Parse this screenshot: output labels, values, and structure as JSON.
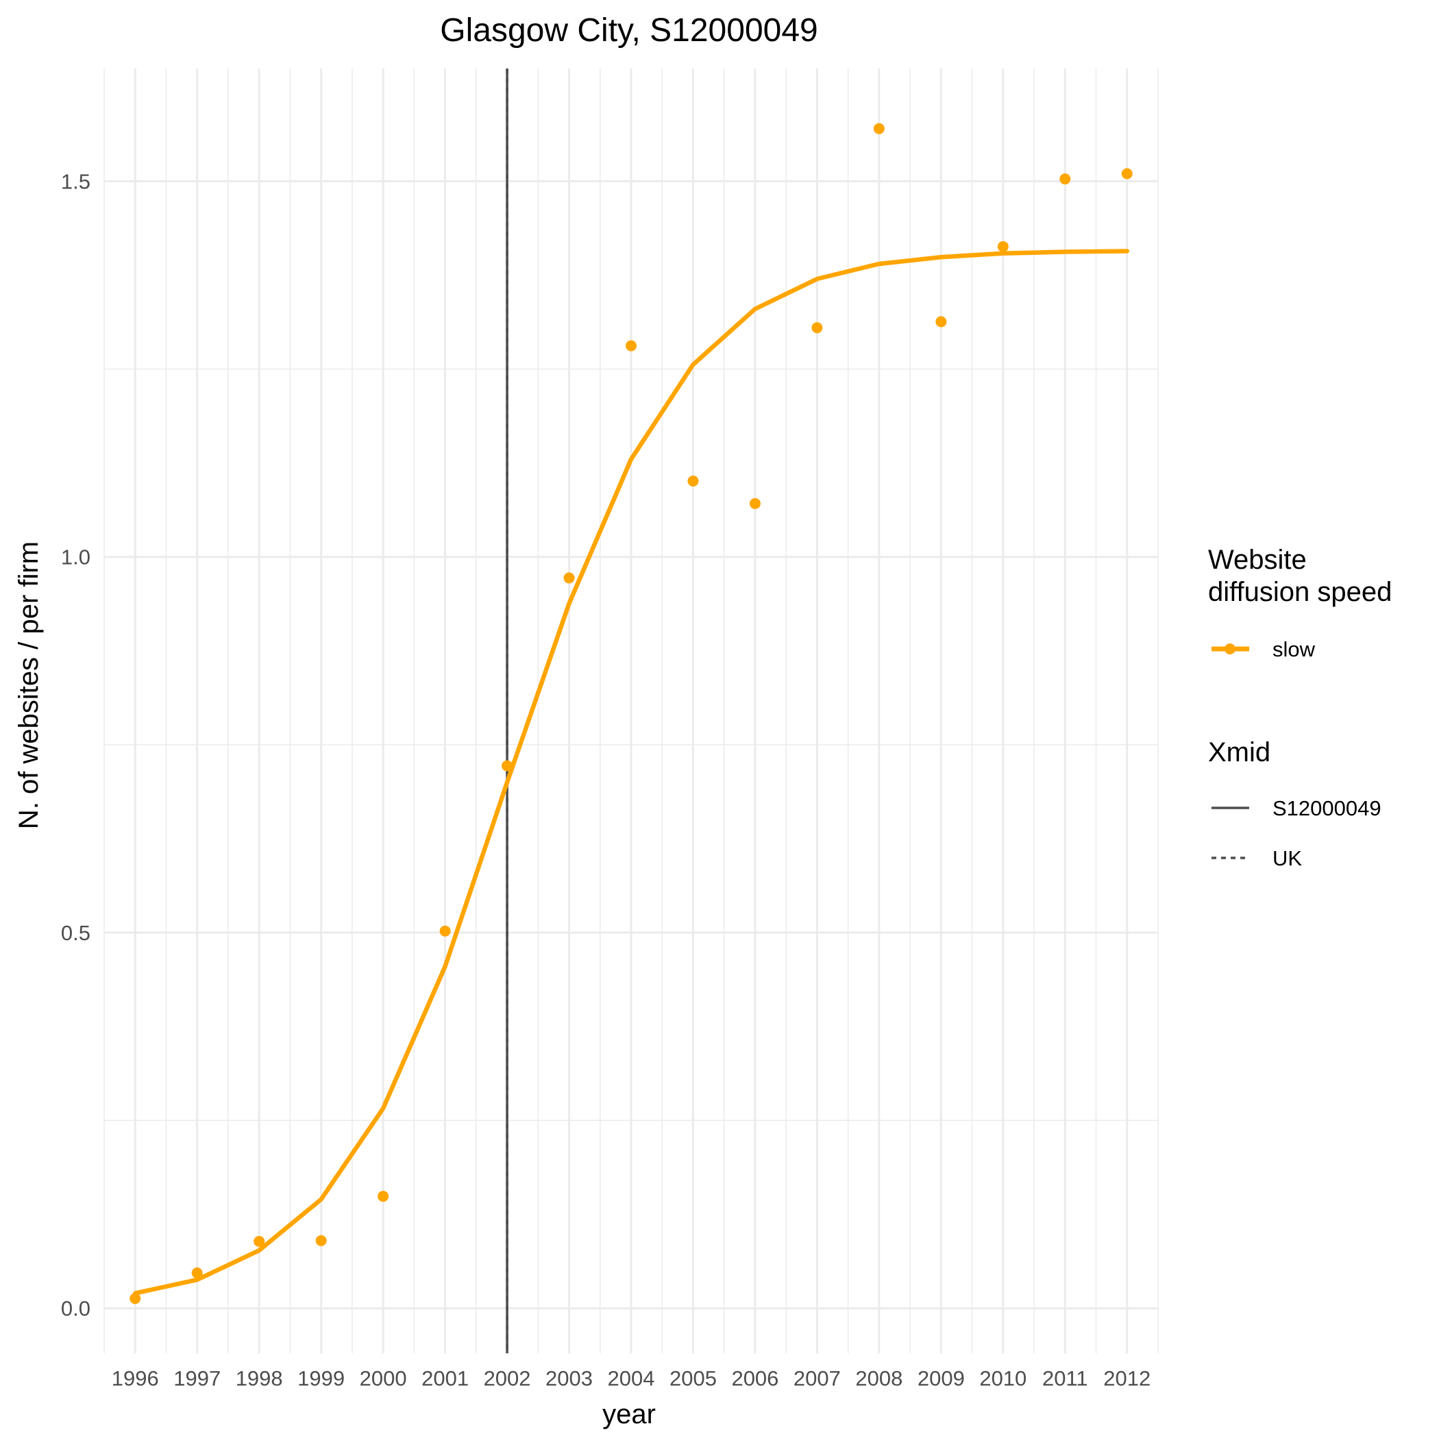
{
  "chart_data": {
    "type": "line",
    "title": "Glasgow City, S12000049",
    "xlabel": "year",
    "ylabel": "N. of websites / per firm",
    "x": [
      1996,
      1997,
      1998,
      1999,
      2000,
      2001,
      2002,
      2003,
      2004,
      2005,
      2006,
      2007,
      2008,
      2009,
      2010,
      2011,
      2012
    ],
    "xlim": [
      1995.5,
      2012.5
    ],
    "ylim": [
      -0.06,
      1.65
    ],
    "y_ticks": [
      0.0,
      0.5,
      1.0,
      1.5
    ],
    "y_tick_labels": [
      "0.0",
      "0.5",
      "1.0",
      "1.5"
    ],
    "grid": true,
    "series": [
      {
        "name": "slow",
        "kind": "points",
        "color": "#FFA500",
        "values": [
          0.013,
          0.047,
          0.089,
          0.09,
          0.149,
          0.502,
          0.722,
          0.972,
          1.281,
          1.101,
          1.071,
          1.305,
          1.57,
          1.313,
          1.413,
          1.503,
          1.51
        ]
      },
      {
        "name": "slow",
        "kind": "line",
        "color": "#FFA500",
        "values": [
          0.02,
          0.038,
          0.077,
          0.145,
          0.266,
          0.455,
          0.7,
          0.938,
          1.13,
          1.256,
          1.33,
          1.37,
          1.39,
          1.399,
          1.404,
          1.406,
          1.407
        ]
      }
    ],
    "vlines": [
      {
        "x": 2002,
        "linetype": "solid",
        "color": "#4d4d4d"
      },
      {
        "x": 2002,
        "linetype": "dotted",
        "color": "#4d4d4d"
      }
    ],
    "legend": {
      "position": "right",
      "groups": [
        {
          "title_lines": [
            "Website",
            "diffusion speed"
          ],
          "items": [
            {
              "label": "slow",
              "color": "#FFA500",
              "symbol": "line-point"
            }
          ]
        },
        {
          "title_lines": [
            "Xmid"
          ],
          "items": [
            {
              "label": "S12000049",
              "color": "#4d4d4d",
              "symbol": "solid-line"
            },
            {
              "label": "UK",
              "color": "#4d4d4d",
              "symbol": "dotted-line"
            }
          ]
        }
      ]
    }
  }
}
